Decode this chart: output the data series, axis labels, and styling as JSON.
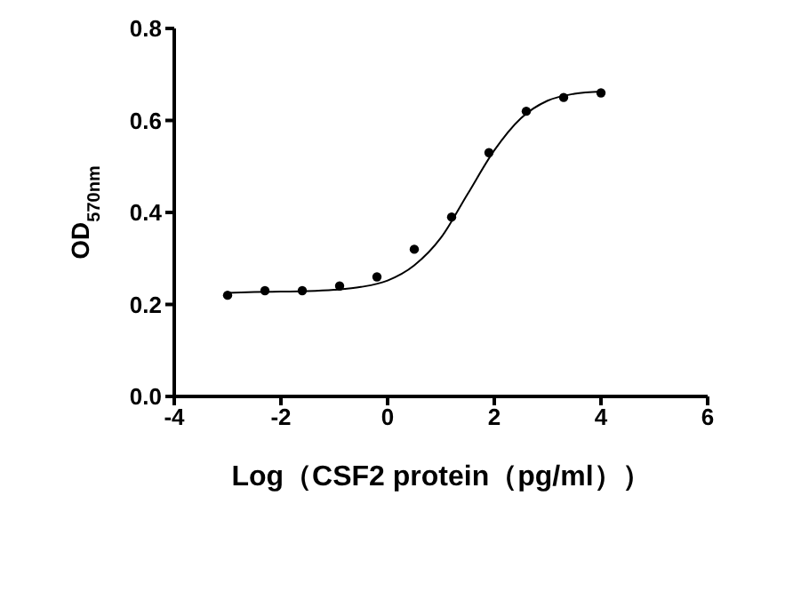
{
  "chart_data": {
    "type": "scatter",
    "xlabel": "Log（CSF2 protein（pg/ml））",
    "ylabel": "OD$_{570nm}$",
    "xlim": [
      -4,
      6
    ],
    "xticks": [
      -4,
      -2,
      0,
      2,
      4,
      6
    ],
    "ylim": [
      0,
      0.8
    ],
    "yticks": [
      {
        "value": 0,
        "label": "0.0"
      },
      0.2,
      0.4,
      0.6,
      0.8
    ],
    "series": [
      {
        "color": "#000000",
        "marker": "circle",
        "x": [
          -3.0,
          -2.3,
          -1.6,
          -0.9,
          -0.2,
          0.5,
          1.2,
          1.9,
          2.6,
          3.3,
          4.0
        ],
        "values": [
          0.22,
          0.23,
          0.23,
          0.24,
          0.26,
          0.32,
          0.39,
          0.53,
          0.62,
          0.65,
          0.66
        ]
      },
      {
        "type": "line",
        "color": "#000000",
        "marker": "none",
        "line_style": "solid",
        "x": [
          -3.0,
          -2.5,
          -2.0,
          -1.5,
          -1.0,
          -0.5,
          0.0,
          0.5,
          1.0,
          1.5,
          2.0,
          2.5,
          3.0,
          3.5,
          4.0
        ],
        "values": [
          0.225,
          0.227,
          0.228,
          0.229,
          0.232,
          0.238,
          0.252,
          0.285,
          0.345,
          0.44,
          0.535,
          0.605,
          0.643,
          0.658,
          0.663
        ]
      }
    ]
  }
}
